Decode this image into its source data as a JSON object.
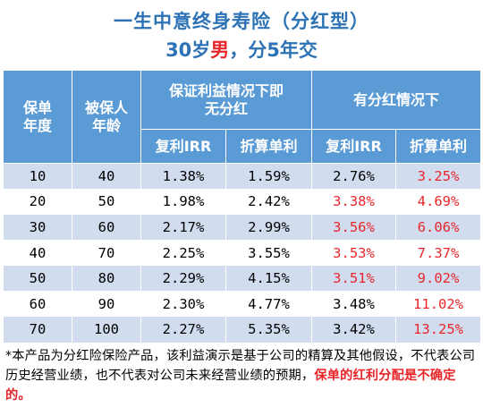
{
  "title": "一生中意终身寿险（分红型）",
  "subtitle": {
    "prefix": "30岁",
    "gender": "男",
    "suffix": "，分5年交"
  },
  "table": {
    "header": {
      "policy_year": "保单年度",
      "insured_age": "被保人年龄",
      "guaranteed": "保证利益情况下即无分红",
      "dividend": "有分红情况下",
      "irr1": "复利IRR",
      "simple1": "折算单利",
      "irr2": "复利IRR",
      "simple2": "折算单利"
    },
    "rows": [
      {
        "year": "10",
        "age": "40",
        "g_irr": "1.38%",
        "g_simple": "1.59%",
        "d_irr": "2.76%",
        "d_simple": "3.25%",
        "d_irr_red": false,
        "d_simple_red": true
      },
      {
        "year": "20",
        "age": "50",
        "g_irr": "1.98%",
        "g_simple": "2.42%",
        "d_irr": "3.38%",
        "d_simple": "4.69%",
        "d_irr_red": true,
        "d_simple_red": true
      },
      {
        "year": "30",
        "age": "60",
        "g_irr": "2.17%",
        "g_simple": "2.99%",
        "d_irr": "3.56%",
        "d_simple": "6.06%",
        "d_irr_red": true,
        "d_simple_red": true
      },
      {
        "year": "40",
        "age": "70",
        "g_irr": "2.25%",
        "g_simple": "3.55%",
        "d_irr": "3.53%",
        "d_simple": "7.37%",
        "d_irr_red": true,
        "d_simple_red": true
      },
      {
        "year": "50",
        "age": "80",
        "g_irr": "2.29%",
        "g_simple": "4.15%",
        "d_irr": "3.51%",
        "d_simple": "9.02%",
        "d_irr_red": true,
        "d_simple_red": true
      },
      {
        "year": "60",
        "age": "90",
        "g_irr": "2.30%",
        "g_simple": "4.77%",
        "d_irr": "3.48%",
        "d_simple": "11.02%",
        "d_irr_red": false,
        "d_simple_red": true
      },
      {
        "year": "70",
        "age": "100",
        "g_irr": "2.27%",
        "g_simple": "5.35%",
        "d_irr": "3.42%",
        "d_simple": "13.25%",
        "d_irr_red": false,
        "d_simple_red": true
      }
    ]
  },
  "footnote": {
    "text": "*本产品为分红险保险产品，该利益演示是基于公司的精算及其他假设，不代表公司历史经营业绩，也不代表对公司未来经营业绩的预期，",
    "highlight": "保单的红利分配是不确定的。"
  },
  "colors": {
    "title": "#2c72b5",
    "header_bg": "#5b9bd5",
    "stripe": "#d1ddef",
    "red": "#e8262a"
  }
}
